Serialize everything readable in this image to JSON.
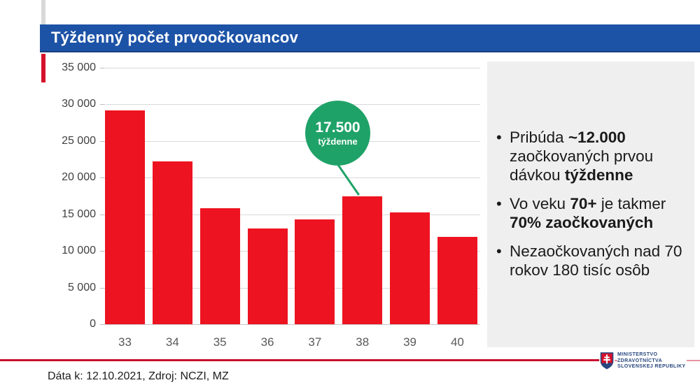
{
  "slide": {
    "title": "Týždenný počet prvoočkovancov",
    "footer": "Dáta k: 12.10.2021, Zdroj: NCZI, MZ"
  },
  "callout": {
    "value": "17.500",
    "unit": "týždenne",
    "points_to_week": "38"
  },
  "bullets": [
    {
      "segments": [
        {
          "text": "Pribúda ",
          "bold": false
        },
        {
          "text": "~12.000",
          "bold": true
        },
        {
          "text": " zaočkovaných prvou dávkou ",
          "bold": false
        },
        {
          "text": "týždenne",
          "bold": true
        }
      ]
    },
    {
      "segments": [
        {
          "text": "Vo veku ",
          "bold": false
        },
        {
          "text": "70+",
          "bold": true
        },
        {
          "text": " je takmer ",
          "bold": false
        },
        {
          "text": "70% zaočkovaných",
          "bold": true
        }
      ]
    },
    {
      "segments": [
        {
          "text": "Nezaočkovaných nad 70 rokov 180 tisíc osôb",
          "bold": false
        }
      ]
    }
  ],
  "logo": {
    "icon": "slovak-coat-of-arms",
    "lines": [
      "MINISTERSTVO",
      "ZDRAVOTNÍCTVA",
      "SLOVENSKEJ REPUBLIKY"
    ]
  },
  "chart_data": {
    "type": "bar",
    "title": "Týždenný počet prvoočkovancov",
    "categories": [
      "33",
      "34",
      "35",
      "36",
      "37",
      "38",
      "39",
      "40"
    ],
    "values": [
      29200,
      22200,
      15800,
      13100,
      14300,
      17500,
      15300,
      11900
    ],
    "xlabel": "",
    "ylabel": "",
    "ylim": [
      0,
      35000
    ],
    "yticks": [
      0,
      5000,
      10000,
      15000,
      20000,
      25000,
      30000,
      35000
    ],
    "ytick_labels": [
      "0",
      "5 000",
      "10 000",
      "15 000",
      "20 000",
      "25 000",
      "30 000",
      "35 000"
    ],
    "grid": true,
    "legend": "none",
    "annotation": {
      "text": "17.500 týždenne",
      "target_category": "38",
      "value": 17500
    }
  },
  "colors": {
    "title_bar_blue": "#1d53a6",
    "bar_red": "#ee1320",
    "callout_green": "#1fa268",
    "panel_gray": "#efeff0",
    "footer_line_red": "#c8102e",
    "gridline_gray": "#d9d9d9",
    "logo_text_blue": "#27477f"
  }
}
